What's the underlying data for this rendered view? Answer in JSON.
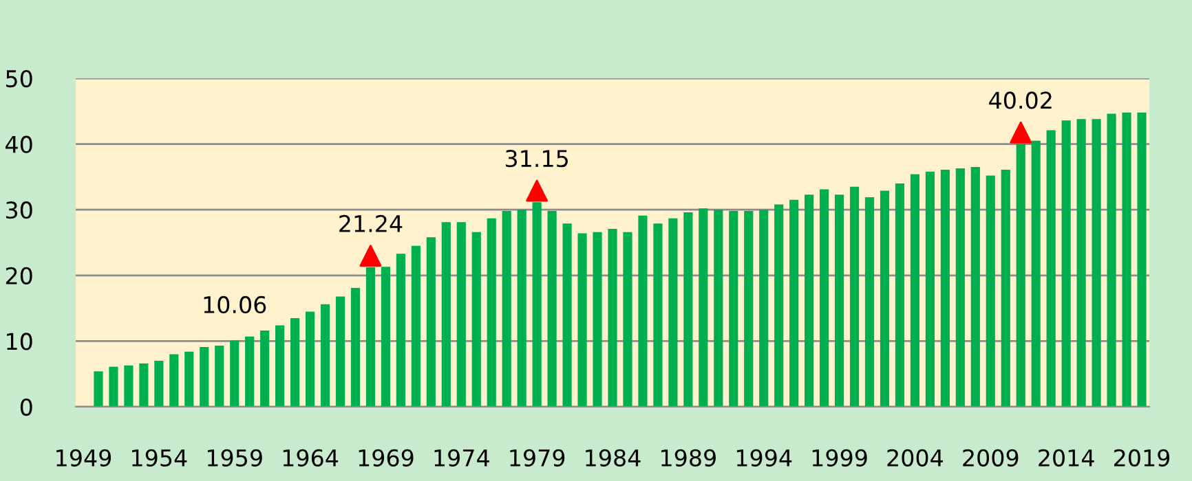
{
  "chart_data": {
    "type": "bar",
    "xlim": [
      1948.5,
      2019.5
    ],
    "xticks": [
      1949,
      1954,
      1959,
      1964,
      1969,
      1974,
      1979,
      1984,
      1989,
      1994,
      1999,
      2004,
      2009,
      2014,
      2019
    ],
    "ylim": [
      0,
      50
    ],
    "yticks": [
      0,
      10,
      20,
      30,
      40,
      50
    ],
    "grid": "y",
    "legend": false,
    "annotations": [
      {
        "text": "10.06",
        "x": 1959,
        "y": 10.06
      }
    ],
    "series": [
      {
        "color": "#00b050",
        "x": [
          1950,
          1951,
          1952,
          1953,
          1954,
          1955,
          1956,
          1957,
          1958,
          1959,
          1960,
          1961,
          1962,
          1963,
          1964,
          1965,
          1966,
          1967,
          1968,
          1969,
          1970,
          1971,
          1972,
          1973,
          1974,
          1975,
          1976,
          1977,
          1978,
          1979,
          1980,
          1981,
          1982,
          1983,
          1984,
          1985,
          1986,
          1987,
          1988,
          1989,
          1990,
          1991,
          1992,
          1993,
          1994,
          1995,
          1996,
          1997,
          1998,
          1999,
          2000,
          2001,
          2002,
          2003,
          2004,
          2005,
          2006,
          2007,
          2008,
          2009,
          2010,
          2011,
          2012,
          2013,
          2014,
          2015,
          2016,
          2017,
          2018,
          2019
        ],
        "values": [
          5.4,
          6.1,
          6.3,
          6.6,
          7.0,
          8.0,
          8.4,
          9.1,
          9.3,
          10.1,
          10.7,
          11.6,
          12.4,
          13.5,
          14.5,
          15.6,
          16.8,
          18.1,
          21.24,
          21.3,
          23.3,
          24.5,
          25.8,
          28.1,
          28.1,
          26.6,
          28.7,
          29.8,
          30.0,
          31.15,
          29.8,
          27.9,
          26.4,
          26.6,
          27.1,
          26.6,
          29.1,
          27.9,
          28.7,
          29.6,
          30.2,
          30.0,
          29.8,
          29.8,
          30.0,
          30.8,
          31.5,
          32.3,
          33.1,
          32.3,
          33.5,
          31.9,
          32.9,
          34.0,
          35.4,
          35.8,
          36.1,
          36.3,
          36.5,
          35.2,
          36.1,
          40.02,
          40.5,
          42.1,
          43.6,
          43.8,
          43.8,
          44.6,
          44.8,
          44.8
        ],
        "value_labels": [
          null,
          null,
          null,
          null,
          null,
          null,
          null,
          null,
          null,
          null,
          null,
          null,
          null,
          null,
          null,
          null,
          null,
          null,
          "21.24",
          null,
          null,
          null,
          null,
          null,
          null,
          null,
          null,
          null,
          null,
          "31.15",
          null,
          null,
          null,
          null,
          null,
          null,
          null,
          null,
          null,
          null,
          null,
          null,
          null,
          null,
          null,
          null,
          null,
          null,
          null,
          null,
          null,
          null,
          null,
          null,
          null,
          null,
          null,
          null,
          null,
          null,
          null,
          "40.02",
          null,
          null,
          null,
          null,
          null,
          null,
          null,
          null
        ]
      }
    ]
  }
}
